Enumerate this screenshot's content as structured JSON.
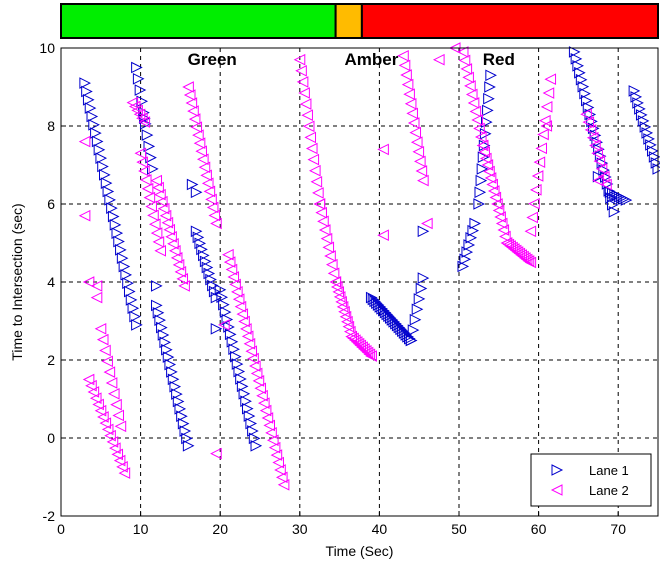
{
  "chart_data": {
    "type": "scatter",
    "title": "",
    "xlabel": "Time (Sec)",
    "ylabel": "Time to Intersection (sec)",
    "xlim": [
      0,
      75
    ],
    "ylim": [
      -2,
      10
    ],
    "xticks": [
      0,
      10,
      20,
      30,
      40,
      50,
      60,
      70
    ],
    "yticks": [
      -2,
      0,
      2,
      4,
      6,
      8,
      10
    ],
    "grid": true,
    "legend_position": "bottom-right",
    "signal_phases": [
      {
        "label": "Green",
        "start": 0,
        "end": 34.5,
        "color": "#00ee00"
      },
      {
        "label": "Amber",
        "start": 34.5,
        "end": 37.8,
        "color": "#ffbb00"
      },
      {
        "label": "Red",
        "start": 37.8,
        "end": 75,
        "color": "#ff0000"
      }
    ],
    "series": [
      {
        "name": "Lane 1",
        "marker": "triangle-right",
        "color": "#0000cc",
        "segments": [
          {
            "x": [
              3.0,
              9.5
            ],
            "y": [
              9.1,
              2.9
            ],
            "n": 30
          },
          {
            "x": [
              9.5,
              11.5
            ],
            "y": [
              9.5,
              6.9
            ],
            "n": 10
          },
          {
            "x": [
              12.0,
              16.0
            ],
            "y": [
              3.4,
              -0.2
            ],
            "n": 20
          },
          {
            "x": [
              16.5,
              17.0
            ],
            "y": [
              6.5,
              6.3
            ],
            "n": 2
          },
          {
            "x": [
              17.0,
              19.5
            ],
            "y": [
              5.3,
              3.6
            ],
            "n": 12
          },
          {
            "x": [
              20.0,
              24.5
            ],
            "y": [
              3.8,
              -0.2
            ],
            "n": 22
          },
          {
            "x": [
              39.0,
              44.0
            ],
            "y": [
              3.6,
              2.5
            ],
            "n": 24
          },
          {
            "x": [
              44.0,
              45.5
            ],
            "y": [
              2.5,
              4.1
            ],
            "n": 7
          },
          {
            "x": [
              50.5,
              52.0
            ],
            "y": [
              4.4,
              5.5
            ],
            "n": 7
          },
          {
            "x": [
              52.5,
              54.0
            ],
            "y": [
              6.0,
              9.3
            ],
            "n": 12
          },
          {
            "x": [
              64.5,
              69.5
            ],
            "y": [
              9.9,
              5.8
            ],
            "n": 24
          },
          {
            "x": [
              69.0,
              71.0
            ],
            "y": [
              6.3,
              6.1
            ],
            "n": 8
          },
          {
            "x": [
              72.0,
              75.0
            ],
            "y": [
              8.9,
              6.9
            ],
            "n": 14
          }
        ],
        "extra_points": [
          [
            12.0,
            3.9
          ],
          [
            19.5,
            2.8
          ],
          [
            45.5,
            5.3
          ],
          [
            10.5,
            8.2
          ],
          [
            67.5,
            6.7
          ]
        ]
      },
      {
        "name": "Lane 2",
        "marker": "triangle-left",
        "color": "#ff00ff",
        "segments": [
          {
            "x": [
              3.5,
              8.0
            ],
            "y": [
              1.5,
              -0.9
            ],
            "n": 16
          },
          {
            "x": [
              5.0,
              7.5
            ],
            "y": [
              2.8,
              0.3
            ],
            "n": 10
          },
          {
            "x": [
              9.0,
              10.5
            ],
            "y": [
              8.6,
              8.1
            ],
            "n": 6
          },
          {
            "x": [
              10.0,
              12.5
            ],
            "y": [
              7.3,
              4.8
            ],
            "n": 12
          },
          {
            "x": [
              12.0,
              15.5
            ],
            "y": [
              6.6,
              3.9
            ],
            "n": 16
          },
          {
            "x": [
              16.0,
              19.5
            ],
            "y": [
              9.0,
              5.5
            ],
            "n": 18
          },
          {
            "x": [
              21.0,
              28.0
            ],
            "y": [
              4.7,
              -1.2
            ],
            "n": 32
          },
          {
            "x": [
              30.0,
              32.5
            ],
            "y": [
              9.7,
              6.0
            ],
            "n": 14
          },
          {
            "x": [
              32.5,
              34.5
            ],
            "y": [
              6.0,
              4.0
            ],
            "n": 10
          },
          {
            "x": [
              34.5,
              36.5
            ],
            "y": [
              4.0,
              2.6
            ],
            "n": 12
          },
          {
            "x": [
              36.5,
              39.0
            ],
            "y": [
              2.6,
              2.1
            ],
            "n": 12
          },
          {
            "x": [
              43.0,
              45.5
            ],
            "y": [
              9.8,
              6.6
            ],
            "n": 14
          },
          {
            "x": [
              50.5,
              53.0
            ],
            "y": [
              9.9,
              7.5
            ],
            "n": 12
          },
          {
            "x": [
              53.0,
              56.0
            ],
            "y": [
              7.5,
              5.0
            ],
            "n": 16
          },
          {
            "x": [
              56.0,
              59.0
            ],
            "y": [
              5.0,
              4.5
            ],
            "n": 14
          },
          {
            "x": [
              59.0,
              61.5
            ],
            "y": [
              5.3,
              9.2
            ],
            "n": 12
          },
          {
            "x": [
              66.0,
              68.5
            ],
            "y": [
              8.3,
              6.5
            ],
            "n": 10
          }
        ],
        "extra_points": [
          [
            3.0,
            7.6
          ],
          [
            3.0,
            5.7
          ],
          [
            3.5,
            4.0
          ],
          [
            4.5,
            3.9
          ],
          [
            4.5,
            3.6
          ],
          [
            19.5,
            -0.4
          ],
          [
            20.5,
            2.9
          ],
          [
            40.5,
            5.2
          ],
          [
            40.5,
            7.4
          ],
          [
            46.0,
            5.5
          ],
          [
            47.5,
            9.7
          ],
          [
            49.5,
            10.0
          ],
          [
            61.0,
            8.0
          ],
          [
            67.5,
            6.6
          ]
        ]
      }
    ]
  }
}
